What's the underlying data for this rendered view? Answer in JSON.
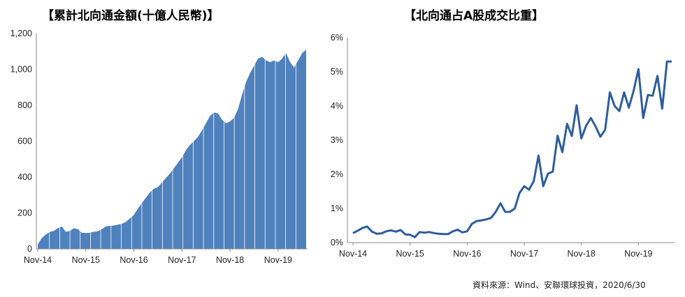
{
  "source": "資料來源：Wind、安聯環球投資，2020/6/30",
  "chart_data": [
    {
      "type": "area",
      "title": "【累計北向通金額(十億人民幣)】",
      "xlabel": "",
      "ylabel": "",
      "ylim": [
        0,
        1200
      ],
      "yticks": [
        "0",
        "200",
        "400",
        "600",
        "800",
        "1,000",
        "1,200"
      ],
      "xticks": [
        "Nov-14",
        "Nov-15",
        "Nov-16",
        "Nov-17",
        "Nov-18",
        "Nov-19"
      ],
      "color": "#4F81BD",
      "grid": false,
      "x": [
        "Nov-14",
        "Dec-14",
        "Jan-15",
        "Feb-15",
        "Mar-15",
        "Apr-15",
        "May-15",
        "Jun-15",
        "Jul-15",
        "Aug-15",
        "Sep-15",
        "Oct-15",
        "Nov-15",
        "Dec-15",
        "Jan-16",
        "Feb-16",
        "Mar-16",
        "Apr-16",
        "May-16",
        "Jun-16",
        "Jul-16",
        "Aug-16",
        "Sep-16",
        "Oct-16",
        "Nov-16",
        "Dec-16",
        "Jan-17",
        "Feb-17",
        "Mar-17",
        "Apr-17",
        "May-17",
        "Jun-17",
        "Jul-17",
        "Aug-17",
        "Sep-17",
        "Oct-17",
        "Nov-17",
        "Dec-17",
        "Jan-18",
        "Feb-18",
        "Mar-18",
        "Apr-18",
        "May-18",
        "Jun-18",
        "Jul-18",
        "Aug-18",
        "Sep-18",
        "Oct-18",
        "Nov-18",
        "Dec-18",
        "Jan-19",
        "Feb-19",
        "Mar-19",
        "Apr-19",
        "May-19",
        "Jun-19",
        "Jul-19",
        "Aug-19",
        "Sep-19",
        "Oct-19",
        "Nov-19",
        "Dec-19",
        "Jan-20",
        "Feb-20",
        "Mar-20",
        "Apr-20",
        "May-20",
        "Jun-20"
      ],
      "values": [
        25,
        60,
        80,
        95,
        100,
        115,
        125,
        95,
        100,
        115,
        110,
        90,
        88,
        90,
        95,
        98,
        110,
        125,
        128,
        130,
        135,
        140,
        150,
        170,
        190,
        225,
        255,
        285,
        315,
        335,
        345,
        370,
        395,
        420,
        450,
        480,
        510,
        550,
        580,
        600,
        625,
        660,
        700,
        740,
        760,
        755,
        720,
        700,
        710,
        730,
        780,
        860,
        930,
        980,
        1020,
        1060,
        1070,
        1050,
        1040,
        1050,
        1040,
        1060,
        1090,
        1040,
        1010,
        1050,
        1090,
        1110
      ]
    },
    {
      "type": "line",
      "title": "【北向通占A股成交比重】",
      "xlabel": "",
      "ylabel": "",
      "ylim": [
        0,
        6
      ],
      "yticks": [
        "0%",
        "1%",
        "2%",
        "3%",
        "4%",
        "5%",
        "6%"
      ],
      "xticks": [
        "Nov-14",
        "Nov-15",
        "Nov-16",
        "Nov-17",
        "Nov-18",
        "Nov-19"
      ],
      "color": "#2E5E9B",
      "grid": false,
      "x": [
        "Nov-14",
        "Dec-14",
        "Jan-15",
        "Feb-15",
        "Mar-15",
        "Apr-15",
        "May-15",
        "Jun-15",
        "Jul-15",
        "Aug-15",
        "Sep-15",
        "Oct-15",
        "Nov-15",
        "Dec-15",
        "Jan-16",
        "Feb-16",
        "Mar-16",
        "Apr-16",
        "May-16",
        "Jun-16",
        "Jul-16",
        "Aug-16",
        "Sep-16",
        "Oct-16",
        "Nov-16",
        "Dec-16",
        "Jan-17",
        "Feb-17",
        "Mar-17",
        "Apr-17",
        "May-17",
        "Jun-17",
        "Jul-17",
        "Aug-17",
        "Sep-17",
        "Oct-17",
        "Nov-17",
        "Dec-17",
        "Jan-18",
        "Feb-18",
        "Mar-18",
        "Apr-18",
        "May-18",
        "Jun-18",
        "Jul-18",
        "Aug-18",
        "Sep-18",
        "Oct-18",
        "Nov-18",
        "Dec-18",
        "Jan-19",
        "Feb-19",
        "Mar-19",
        "Apr-19",
        "May-19",
        "Jun-19",
        "Jul-19",
        "Aug-19",
        "Sep-19",
        "Oct-19",
        "Nov-19",
        "Dec-19",
        "Jan-20",
        "Feb-20",
        "Mar-20",
        "Apr-20",
        "May-20",
        "Jun-20"
      ],
      "values": [
        0.28,
        0.35,
        0.43,
        0.47,
        0.32,
        0.26,
        0.27,
        0.33,
        0.36,
        0.32,
        0.37,
        0.24,
        0.23,
        0.16,
        0.31,
        0.29,
        0.31,
        0.28,
        0.26,
        0.25,
        0.25,
        0.33,
        0.38,
        0.3,
        0.33,
        0.55,
        0.63,
        0.65,
        0.68,
        0.72,
        0.9,
        1.15,
        0.9,
        0.9,
        1.0,
        1.45,
        1.65,
        1.55,
        1.8,
        2.55,
        1.65,
        2.02,
        2.08,
        3.13,
        2.65,
        3.48,
        3.12,
        4.02,
        3.05,
        3.42,
        3.65,
        3.4,
        3.1,
        3.3,
        4.4,
        4.0,
        3.85,
        4.4,
        3.95,
        4.45,
        5.08,
        3.65,
        4.32,
        4.3,
        4.88,
        3.92,
        5.3,
        5.3
      ]
    }
  ]
}
